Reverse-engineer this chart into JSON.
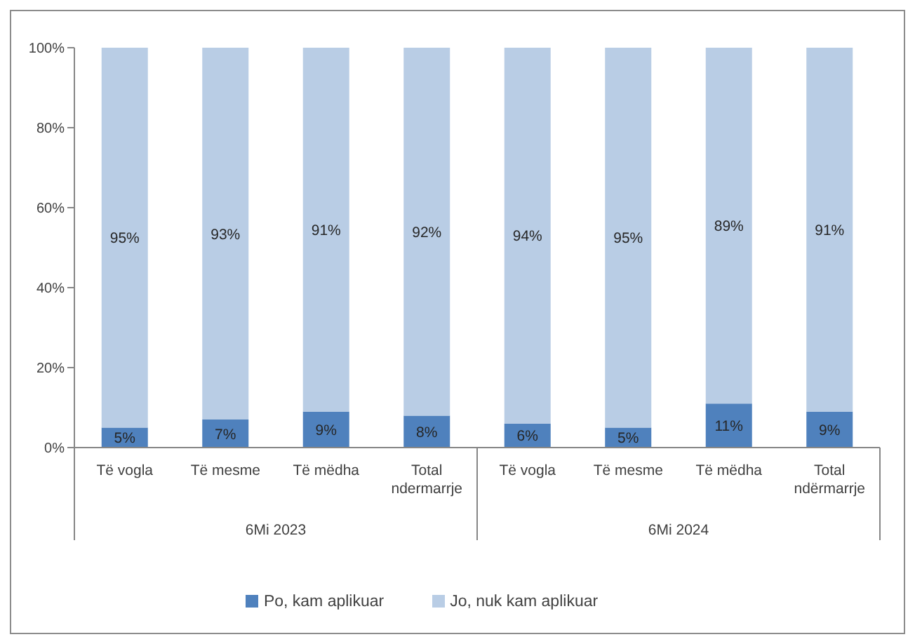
{
  "chart_data": {
    "type": "bar",
    "stacked": true,
    "categories": [
      "Të vogla",
      "Të mesme",
      "Të mëdha",
      "Total ndermarrje",
      "Të vogla",
      "Të mesme",
      "Të mëdha",
      "Total ndërmarrje"
    ],
    "series": [
      {
        "name": "Po, kam aplikuar",
        "color": "#4f81bd",
        "values": [
          5,
          7,
          9,
          8,
          6,
          5,
          11,
          9
        ],
        "value_labels": [
          "5%",
          "7%",
          "9%",
          "8%",
          "6%",
          "5%",
          "11%",
          "9%"
        ]
      },
      {
        "name": "Jo, nuk kam aplikuar",
        "color": "#b9cde5",
        "values": [
          95,
          93,
          91,
          92,
          94,
          95,
          89,
          91
        ],
        "value_labels": [
          "95%",
          "93%",
          "91%",
          "92%",
          "94%",
          "95%",
          "89%",
          "91%"
        ]
      }
    ],
    "ylim": [
      0,
      100
    ],
    "yticks": [
      {
        "value": 0,
        "label": "0%"
      },
      {
        "value": 20,
        "label": "20%"
      },
      {
        "value": 40,
        "label": "40%"
      },
      {
        "value": 60,
        "label": "60%"
      },
      {
        "value": 80,
        "label": "80%"
      },
      {
        "value": 100,
        "label": "100%"
      }
    ],
    "annotations": [
      "6Mi 2023",
      "6Mi 2024"
    ],
    "legend": "bottom"
  }
}
